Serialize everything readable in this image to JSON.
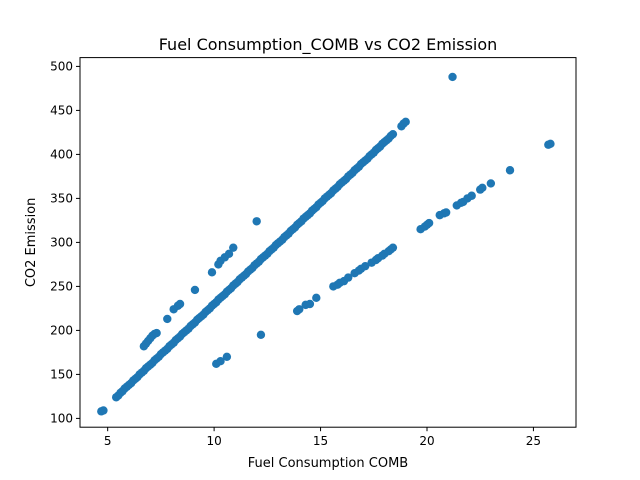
{
  "chart_data": {
    "type": "scatter",
    "title": "Fuel Consumption_COMB vs CO2 Emission",
    "xlabel": "Fuel Consumption COMB",
    "ylabel": "CO2 Emission",
    "xlim": [
      3.7,
      27.0
    ],
    "ylim": [
      90,
      510
    ],
    "xticks": [
      5,
      10,
      15,
      20,
      25
    ],
    "yticks": [
      100,
      150,
      200,
      250,
      300,
      350,
      400,
      450,
      500
    ],
    "grid": false,
    "legend": "none",
    "marker_color": "#1f77b4",
    "series": [
      {
        "points": [
          [
            4.7,
            108
          ],
          [
            4.8,
            109
          ],
          [
            5.4,
            124
          ],
          [
            5.5,
            126
          ],
          [
            5.6,
            129
          ],
          [
            5.7,
            131
          ],
          [
            5.8,
            134
          ],
          [
            5.9,
            136
          ],
          [
            6.0,
            138
          ],
          [
            6.1,
            140
          ],
          [
            6.2,
            143
          ],
          [
            6.3,
            145
          ],
          [
            6.4,
            147
          ],
          [
            6.5,
            150
          ],
          [
            6.6,
            152
          ],
          [
            6.7,
            154
          ],
          [
            6.8,
            157
          ],
          [
            6.9,
            159
          ],
          [
            7.0,
            161
          ],
          [
            7.1,
            163
          ],
          [
            7.2,
            166
          ],
          [
            7.3,
            168
          ],
          [
            7.4,
            170
          ],
          [
            7.5,
            173
          ],
          [
            7.6,
            175
          ],
          [
            7.7,
            177
          ],
          [
            7.8,
            179
          ],
          [
            7.9,
            182
          ],
          [
            8.0,
            184
          ],
          [
            8.1,
            186
          ],
          [
            8.2,
            189
          ],
          [
            8.3,
            191
          ],
          [
            8.4,
            193
          ],
          [
            8.5,
            196
          ],
          [
            8.6,
            198
          ],
          [
            8.7,
            200
          ],
          [
            8.8,
            202
          ],
          [
            8.9,
            205
          ],
          [
            9.0,
            207
          ],
          [
            9.1,
            209
          ],
          [
            9.2,
            212
          ],
          [
            9.3,
            214
          ],
          [
            9.4,
            216
          ],
          [
            9.5,
            218
          ],
          [
            9.6,
            221
          ],
          [
            9.7,
            223
          ],
          [
            9.8,
            225
          ],
          [
            9.9,
            228
          ],
          [
            10.0,
            230
          ],
          [
            10.1,
            232
          ],
          [
            10.2,
            235
          ],
          [
            10.3,
            237
          ],
          [
            10.4,
            239
          ],
          [
            10.5,
            241
          ],
          [
            10.6,
            244
          ],
          [
            10.7,
            246
          ],
          [
            10.8,
            248
          ],
          [
            10.9,
            251
          ],
          [
            11.0,
            253
          ],
          [
            11.1,
            255
          ],
          [
            11.2,
            258
          ],
          [
            11.3,
            260
          ],
          [
            11.4,
            262
          ],
          [
            11.5,
            264
          ],
          [
            11.6,
            267
          ],
          [
            11.7,
            269
          ],
          [
            11.8,
            271
          ],
          [
            11.9,
            274
          ],
          [
            12.0,
            276
          ],
          [
            12.1,
            278
          ],
          [
            12.2,
            281
          ],
          [
            12.3,
            283
          ],
          [
            12.4,
            285
          ],
          [
            12.5,
            287
          ],
          [
            12.6,
            290
          ],
          [
            12.7,
            292
          ],
          [
            12.8,
            294
          ],
          [
            12.9,
            297
          ],
          [
            13.0,
            299
          ],
          [
            13.1,
            301
          ],
          [
            13.2,
            303
          ],
          [
            13.3,
            306
          ],
          [
            13.4,
            308
          ],
          [
            13.5,
            310
          ],
          [
            13.6,
            313
          ],
          [
            13.7,
            315
          ],
          [
            13.8,
            317
          ],
          [
            13.9,
            320
          ],
          [
            14.0,
            322
          ],
          [
            14.1,
            324
          ],
          [
            14.2,
            327
          ],
          [
            14.3,
            329
          ],
          [
            14.4,
            331
          ],
          [
            14.5,
            333
          ],
          [
            14.6,
            336
          ],
          [
            14.7,
            338
          ],
          [
            14.8,
            340
          ],
          [
            14.9,
            343
          ],
          [
            15.0,
            345
          ],
          [
            15.1,
            347
          ],
          [
            15.2,
            350
          ],
          [
            15.3,
            352
          ],
          [
            15.4,
            354
          ],
          [
            15.5,
            356
          ],
          [
            15.6,
            359
          ],
          [
            15.7,
            361
          ],
          [
            15.8,
            363
          ],
          [
            15.9,
            366
          ],
          [
            16.0,
            368
          ],
          [
            16.1,
            370
          ],
          [
            16.2,
            372
          ],
          [
            16.3,
            375
          ],
          [
            16.4,
            377
          ],
          [
            16.5,
            379
          ],
          [
            16.6,
            382
          ],
          [
            16.7,
            384
          ],
          [
            16.8,
            386
          ],
          [
            16.9,
            389
          ],
          [
            17.0,
            391
          ],
          [
            17.1,
            393
          ],
          [
            17.2,
            395
          ],
          [
            17.3,
            398
          ],
          [
            17.4,
            400
          ],
          [
            17.5,
            402
          ],
          [
            17.6,
            405
          ],
          [
            17.7,
            407
          ],
          [
            17.8,
            409
          ],
          [
            17.9,
            412
          ],
          [
            18.0,
            414
          ],
          [
            18.1,
            416
          ],
          [
            18.2,
            418
          ],
          [
            18.3,
            421
          ],
          [
            18.4,
            423
          ],
          [
            18.8,
            432
          ],
          [
            18.9,
            435
          ],
          [
            19.0,
            437
          ],
          [
            6.7,
            182
          ],
          [
            6.8,
            185
          ],
          [
            6.9,
            188
          ],
          [
            7.0,
            191
          ],
          [
            7.1,
            194
          ],
          [
            7.2,
            196
          ],
          [
            7.3,
            197
          ],
          [
            7.8,
            213
          ],
          [
            8.1,
            224
          ],
          [
            8.3,
            228
          ],
          [
            8.4,
            230
          ],
          [
            9.1,
            246
          ],
          [
            9.9,
            266
          ],
          [
            10.2,
            275
          ],
          [
            10.3,
            279
          ],
          [
            10.5,
            283
          ],
          [
            10.7,
            287
          ],
          [
            10.9,
            294
          ],
          [
            12.0,
            324
          ],
          [
            10.1,
            162
          ],
          [
            10.3,
            165
          ],
          [
            10.6,
            170
          ],
          [
            12.2,
            195
          ],
          [
            13.9,
            222
          ],
          [
            14.0,
            224
          ],
          [
            14.3,
            229
          ],
          [
            14.5,
            230
          ],
          [
            14.8,
            237
          ],
          [
            15.6,
            250
          ],
          [
            15.8,
            252
          ],
          [
            15.9,
            254
          ],
          [
            16.1,
            256
          ],
          [
            16.3,
            260
          ],
          [
            16.6,
            265
          ],
          [
            16.8,
            268
          ],
          [
            16.9,
            270
          ],
          [
            17.1,
            273
          ],
          [
            17.4,
            277
          ],
          [
            17.6,
            280
          ],
          [
            17.7,
            282
          ],
          [
            17.9,
            285
          ],
          [
            18.0,
            287
          ],
          [
            18.2,
            290
          ],
          [
            18.3,
            292
          ],
          [
            18.4,
            294
          ],
          [
            19.7,
            315
          ],
          [
            19.9,
            318
          ],
          [
            20.0,
            320
          ],
          [
            20.1,
            322
          ],
          [
            20.6,
            331
          ],
          [
            20.8,
            333
          ],
          [
            20.9,
            334
          ],
          [
            21.4,
            342
          ],
          [
            21.6,
            345
          ],
          [
            21.7,
            346
          ],
          [
            21.9,
            350
          ],
          [
            22.1,
            353
          ],
          [
            22.5,
            360
          ],
          [
            22.6,
            362
          ],
          [
            23.0,
            367
          ],
          [
            23.9,
            382
          ],
          [
            21.2,
            488
          ],
          [
            25.7,
            411
          ],
          [
            25.8,
            412
          ]
        ]
      }
    ]
  }
}
